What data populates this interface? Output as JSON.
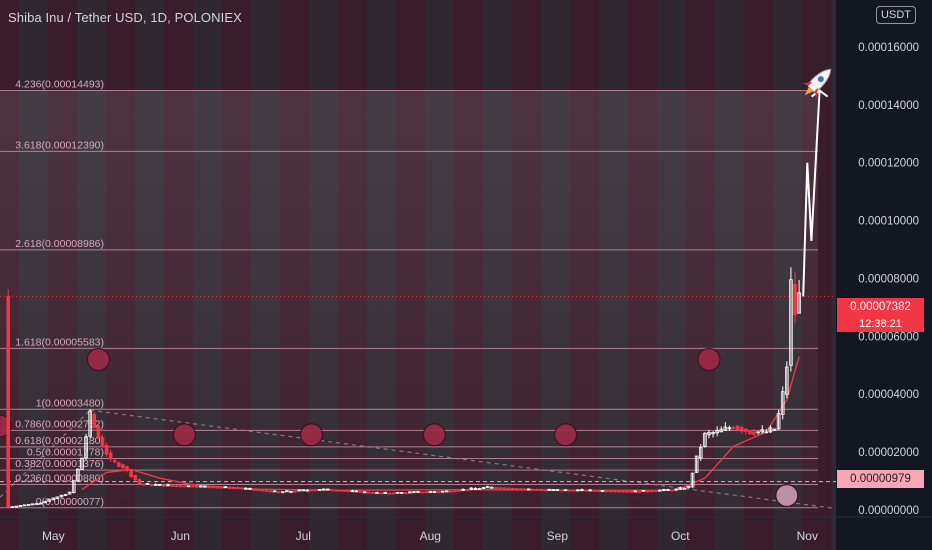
{
  "header": {
    "title": "Shiba Inu / Tether USD, 1D, POLONIEX",
    "currency_badge": "USDT"
  },
  "price_tags": {
    "last_price": "0.00007382",
    "countdown": "12:38:21",
    "marked_price": "0.00000979"
  },
  "colors": {
    "background": "#131722",
    "band_a": "#5a2232",
    "band_b": "#48363e",
    "bull": "#ffffff",
    "bear": "#f23645",
    "circle": "#9c2a48",
    "fib_line": "#d79cb2",
    "last_price": "#f23645",
    "marked_price": "#f7a6b8"
  },
  "chart_data": {
    "type": "candlestick",
    "title": "Shiba Inu / Tether USD, 1D, POLONIEX",
    "y_axis": {
      "range": [
        0.0,
        0.00017
      ],
      "ticks": [
        0.0,
        2e-05,
        4e-05,
        6e-05,
        8e-05,
        0.0001,
        0.00012,
        0.00014,
        0.00016
      ],
      "tick_labels": [
        "0.00000000",
        "0.00002000",
        "0.00004000",
        "0.00006000",
        "0.00008000",
        "0.00010000",
        "0.00012000",
        "0.00014000",
        "0.00016000"
      ]
    },
    "x_axis": {
      "labels": [
        {
          "label": "May",
          "date": "2021-05-01"
        },
        {
          "label": "Jun",
          "date": "2021-06-01"
        },
        {
          "label": "Jul",
          "date": "2021-07-01"
        },
        {
          "label": "Aug",
          "date": "2021-08-01"
        },
        {
          "label": "Sep",
          "date": "2021-09-01"
        },
        {
          "label": "Oct",
          "date": "2021-10-01"
        },
        {
          "label": "Nov",
          "date": "2021-11-01"
        }
      ],
      "range": [
        "2021-04-18",
        "2021-11-08"
      ]
    },
    "fib_levels": [
      {
        "label": "4.236(0.00014493)",
        "value": 0.00014493
      },
      {
        "label": "3.618(0.00012390)",
        "value": 0.0001239
      },
      {
        "label": "2.618(0.00008986)",
        "value": 8.986e-05
      },
      {
        "label": "1.618(0.00005583)",
        "value": 5.583e-05
      },
      {
        "label": "1(0.00003480)",
        "value": 3.48e-05
      },
      {
        "label": "0.786(0.00002752)",
        "value": 2.752e-05
      },
      {
        "label": "0.618(0.00002180)",
        "value": 2.18e-05
      },
      {
        "label": "0.5(0.00001778)",
        "value": 1.778e-05
      },
      {
        "label": "0.382(0.00001376)",
        "value": 1.376e-05
      },
      {
        "label": "0.236(0.00000880)",
        "value": 8.8e-06
      },
      {
        "label": "0(0.00000077)",
        "value": 7.7e-07
      }
    ],
    "price_series": [
      {
        "date": "2021-04-20",
        "value": 1e-06
      },
      {
        "date": "2021-04-28",
        "value": 2.5e-06
      },
      {
        "date": "2021-05-05",
        "value": 6e-06
      },
      {
        "date": "2021-05-08",
        "value": 1.8e-05
      },
      {
        "date": "2021-05-10",
        "value": 3.3e-05
      },
      {
        "date": "2021-05-12",
        "value": 2.5e-05
      },
      {
        "date": "2021-05-15",
        "value": 1.7e-05
      },
      {
        "date": "2021-05-18",
        "value": 1.5e-05
      },
      {
        "date": "2021-05-22",
        "value": 9e-06
      },
      {
        "date": "2021-05-28",
        "value": 8.5e-06
      },
      {
        "date": "2021-06-05",
        "value": 8.2e-06
      },
      {
        "date": "2021-06-15",
        "value": 7.6e-06
      },
      {
        "date": "2021-06-25",
        "value": 6.2e-06
      },
      {
        "date": "2021-07-05",
        "value": 7.2e-06
      },
      {
        "date": "2021-07-20",
        "value": 5.8e-06
      },
      {
        "date": "2021-08-05",
        "value": 6.5e-06
      },
      {
        "date": "2021-08-15",
        "value": 7.8e-06
      },
      {
        "date": "2021-08-28",
        "value": 7e-06
      },
      {
        "date": "2021-09-07",
        "value": 6.8e-06
      },
      {
        "date": "2021-09-20",
        "value": 6.4e-06
      },
      {
        "date": "2021-09-30",
        "value": 7.1e-06
      },
      {
        "date": "2021-10-03",
        "value": 8e-06
      },
      {
        "date": "2021-10-05",
        "value": 1.8e-05
      },
      {
        "date": "2021-10-07",
        "value": 2.6e-05
      },
      {
        "date": "2021-10-10",
        "value": 2.7e-05
      },
      {
        "date": "2021-10-14",
        "value": 2.9e-05
      },
      {
        "date": "2021-10-18",
        "value": 2.7e-05
      },
      {
        "date": "2021-10-22",
        "value": 2.7e-05
      },
      {
        "date": "2021-10-24",
        "value": 2.8e-05
      },
      {
        "date": "2021-10-25",
        "value": 3.3e-05
      },
      {
        "date": "2021-10-26",
        "value": 4e-05
      },
      {
        "date": "2021-10-27",
        "value": 5e-05
      },
      {
        "date": "2021-10-28",
        "value": 7.8e-05
      },
      {
        "date": "2021-10-29",
        "value": 6.8e-05
      },
      {
        "date": "2021-10-30",
        "value": 7.382e-05
      }
    ],
    "ma_series": [
      {
        "date": "2021-05-08",
        "value": 7e-06
      },
      {
        "date": "2021-05-14",
        "value": 1.3e-05
      },
      {
        "date": "2021-05-20",
        "value": 1.4e-05
      },
      {
        "date": "2021-05-27",
        "value": 1.1e-05
      },
      {
        "date": "2021-06-05",
        "value": 8.5e-06
      },
      {
        "date": "2021-06-20",
        "value": 7.2e-06
      },
      {
        "date": "2021-07-10",
        "value": 6.8e-06
      },
      {
        "date": "2021-08-10",
        "value": 7e-06
      },
      {
        "date": "2021-09-10",
        "value": 6.8e-06
      },
      {
        "date": "2021-09-30",
        "value": 6.8e-06
      },
      {
        "date": "2021-10-07",
        "value": 1.1e-05
      },
      {
        "date": "2021-10-14",
        "value": 2.2e-05
      },
      {
        "date": "2021-10-22",
        "value": 2.7e-05
      },
      {
        "date": "2021-10-27",
        "value": 3.8e-05
      },
      {
        "date": "2021-10-30",
        "value": 5.3e-05
      }
    ],
    "projection": [
      {
        "date": "2021-10-31",
        "value": 7.382e-05
      },
      {
        "date": "2021-11-01",
        "value": 0.00012
      },
      {
        "date": "2021-11-02",
        "value": 9.3e-05
      },
      {
        "date": "2021-11-04",
        "value": 0.00014493
      }
    ],
    "trend_lines": [
      {
        "from": {
          "date": "2021-05-10",
          "value": 3.45e-05
        },
        "to": {
          "date": "2021-11-08",
          "value": 5e-07
        }
      },
      {
        "from": {
          "date": "2021-04-18",
          "value": 4.4e-06
        },
        "to": {
          "date": "2021-05-10",
          "value": 3.45e-05
        }
      }
    ],
    "marked_level": 9.79e-06,
    "last_price": 7.382e-05,
    "circle_markers": [
      {
        "date": "2021-04-18",
        "value": 2.9e-05
      },
      {
        "date": "2021-05-12",
        "value": 5.2e-05
      },
      {
        "date": "2021-06-02",
        "value": 2.6e-05
      },
      {
        "date": "2021-07-03",
        "value": 2.6e-05
      },
      {
        "date": "2021-08-02",
        "value": 2.6e-05
      },
      {
        "date": "2021-09-03",
        "value": 2.6e-05
      },
      {
        "date": "2021-10-08",
        "value": 5.2e-05
      },
      {
        "date": "2021-10-27",
        "value": 5e-06
      }
    ],
    "grid": false,
    "legend": "none"
  }
}
